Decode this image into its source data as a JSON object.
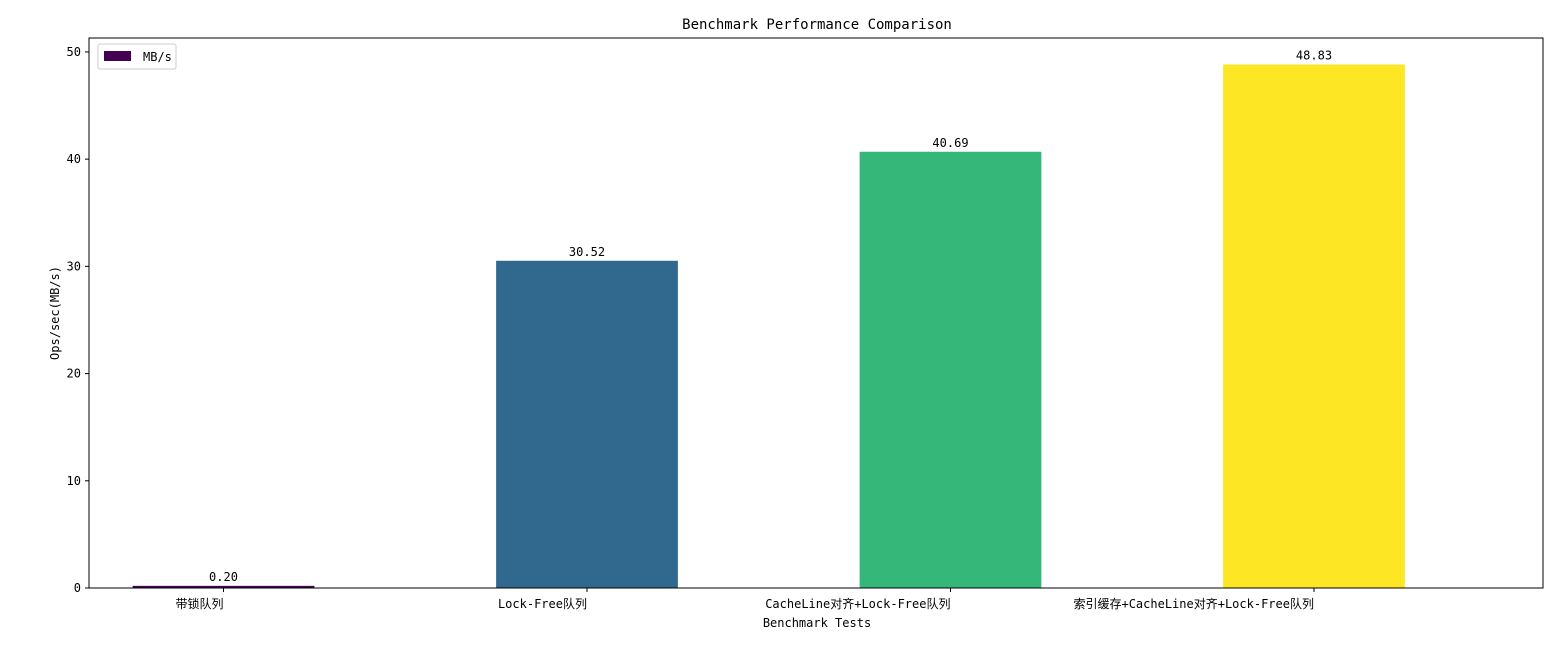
{
  "chart_data": {
    "type": "bar",
    "title": "Benchmark Performance Comparison",
    "xlabel": "Benchmark Tests",
    "ylabel": "Ops/sec(MB/s)",
    "categories": [
      "带锁队列",
      "Lock-Free队列",
      "CacheLine对齐+Lock-Free队列",
      "索引缓存+CacheLine对齐+Lock-Free队列"
    ],
    "series": [
      {
        "name": "MB/s",
        "values": [
          0.2,
          30.52,
          40.69,
          48.83
        ]
      }
    ],
    "data_labels": [
      "0.20",
      "30.52",
      "40.69",
      "48.83"
    ],
    "bar_colors": [
      "#440154",
      "#31688e",
      "#35b779",
      "#fde725"
    ],
    "ylim": [
      0,
      51.3
    ],
    "yticks": [
      0,
      10,
      20,
      30,
      40,
      50
    ],
    "legend_position": "upper-left",
    "grid": false
  }
}
